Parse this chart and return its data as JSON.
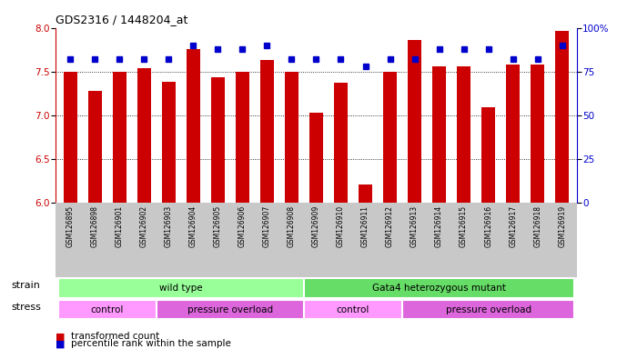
{
  "title": "GDS2316 / 1448204_at",
  "samples": [
    "GSM126895",
    "GSM126898",
    "GSM126901",
    "GSM126902",
    "GSM126903",
    "GSM126904",
    "GSM126905",
    "GSM126906",
    "GSM126907",
    "GSM126908",
    "GSM126909",
    "GSM126910",
    "GSM126911",
    "GSM126912",
    "GSM126913",
    "GSM126914",
    "GSM126915",
    "GSM126916",
    "GSM126917",
    "GSM126918",
    "GSM126919"
  ],
  "bar_values": [
    7.5,
    7.28,
    7.5,
    7.54,
    7.38,
    7.76,
    7.43,
    7.5,
    7.63,
    7.5,
    7.03,
    7.37,
    6.21,
    7.5,
    7.86,
    7.56,
    7.56,
    7.09,
    7.58,
    7.58,
    7.97
  ],
  "percentile_values": [
    82,
    82,
    82,
    82,
    82,
    90,
    88,
    88,
    90,
    82,
    82,
    82,
    78,
    82,
    82,
    88,
    88,
    88,
    82,
    82,
    90
  ],
  "bar_color": "#cc0000",
  "percentile_color": "#0000cc",
  "ylim_left": [
    6.0,
    8.0
  ],
  "ylim_right": [
    0,
    100
  ],
  "yticks_left": [
    6.0,
    6.5,
    7.0,
    7.5,
    8.0
  ],
  "yticks_right": [
    0,
    25,
    50,
    75,
    100
  ],
  "grid_values": [
    6.5,
    7.0,
    7.5
  ],
  "strain_groups": [
    {
      "label": "wild type",
      "start": 0,
      "end": 10,
      "color": "#99ff99"
    },
    {
      "label": "Gata4 heterozygous mutant",
      "start": 10,
      "end": 21,
      "color": "#66dd66"
    }
  ],
  "stress_groups": [
    {
      "label": "control",
      "start": 0,
      "end": 4,
      "color": "#ff99ff"
    },
    {
      "label": "pressure overload",
      "start": 4,
      "end": 10,
      "color": "#dd66dd"
    },
    {
      "label": "control",
      "start": 10,
      "end": 14,
      "color": "#ff99ff"
    },
    {
      "label": "pressure overload",
      "start": 14,
      "end": 21,
      "color": "#dd66dd"
    }
  ],
  "legend_items": [
    {
      "label": "transformed count",
      "color": "#cc0000"
    },
    {
      "label": "percentile rank within the sample",
      "color": "#0000cc"
    }
  ],
  "bg_color": "#ffffff",
  "tick_area_color": "#c8c8c8"
}
